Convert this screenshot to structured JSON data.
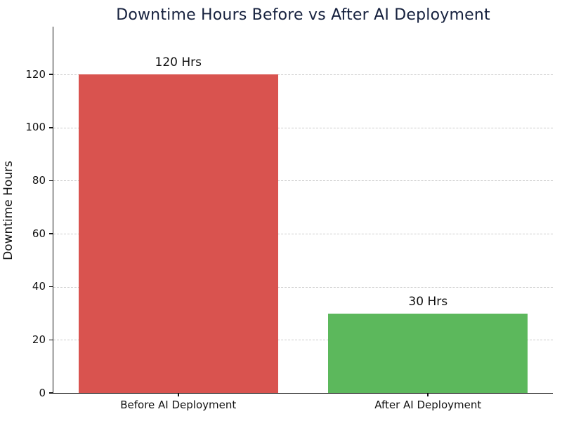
{
  "chart_data": {
    "type": "bar",
    "title": "Downtime Hours Before vs After AI Deployment",
    "xlabel": "",
    "ylabel": "Downtime Hours",
    "categories": [
      "Before AI Deployment",
      "After AI Deployment"
    ],
    "values": [
      120,
      30
    ],
    "bar_value_labels": [
      "120 Hrs",
      "30 Hrs"
    ],
    "bar_colors": [
      "#d9534f",
      "#5cb85c"
    ],
    "yticks": [
      0,
      20,
      40,
      60,
      80,
      100,
      120
    ],
    "ylim": [
      0,
      138
    ],
    "grid": {
      "horizontal": true,
      "style": "dashed",
      "color": "#cccccc"
    },
    "legend": "none",
    "title_color": "#16213e",
    "text_color": "#111111",
    "background_color": "#ffffff"
  }
}
